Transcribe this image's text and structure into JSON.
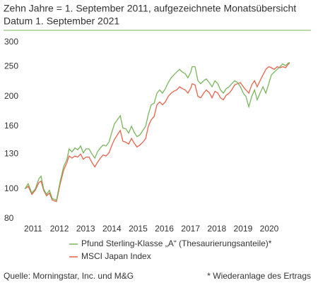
{
  "chart_data": {
    "type": "line",
    "title": "Zehn Jahre = 1. September 2011, aufgezeichnete Monatsübersicht",
    "subtitle": "Datum 1. September 2021",
    "source": "Quelle: Morningstar, Inc. und M&G",
    "footnote": "* Wiederanlage des Ertrags",
    "x": [
      2010.68,
      2010.81,
      2010.95,
      2011.08,
      2011.22,
      2011.3,
      2011.4,
      2011.51,
      2011.62,
      2011.73,
      2011.89,
      2012.02,
      2012.16,
      2012.29,
      2012.37,
      2012.48,
      2012.59,
      2012.7,
      2012.81,
      2012.91,
      2013.02,
      2013.13,
      2013.24,
      2013.35,
      2013.45,
      2013.56,
      2013.67,
      2013.78,
      2013.89,
      2013.99,
      2014.1,
      2014.21,
      2014.32,
      2014.42,
      2014.53,
      2014.64,
      2014.75,
      2014.85,
      2014.96,
      2015.07,
      2015.18,
      2015.29,
      2015.39,
      2015.5,
      2015.61,
      2015.72,
      2015.82,
      2015.93,
      2016.04,
      2016.15,
      2016.26,
      2016.36,
      2016.47,
      2016.58,
      2016.69,
      2016.8,
      2016.9,
      2017.01,
      2017.06,
      2017.17,
      2017.28,
      2017.39,
      2017.5,
      2017.6,
      2017.71,
      2017.82,
      2017.93,
      2018.04,
      2018.14,
      2018.25,
      2018.36,
      2018.47,
      2018.57,
      2018.68,
      2018.79,
      2018.9,
      2019.01,
      2019.11,
      2019.22,
      2019.33,
      2019.44,
      2019.54,
      2019.65,
      2019.76,
      2019.87,
      2019.98,
      2020.08,
      2020.19,
      2020.3,
      2020.41,
      2020.51,
      2020.62,
      2020.73,
      2020.78
    ],
    "series": [
      {
        "name": "Pfund Sterling-Klasse „A“ (Thesaurierungsanteile)*",
        "color": "#7ab55c",
        "values": [
          100,
          104,
          97,
          100,
          108,
          110,
          100,
          96,
          99,
          93,
          92,
          105,
          118,
          125,
          135,
          132,
          136,
          134,
          138,
          131,
          135,
          135,
          130,
          126,
          132,
          136,
          139,
          138,
          142,
          152,
          163,
          168,
          173,
          158,
          157,
          152,
          160,
          153,
          148,
          150,
          155,
          160,
          175,
          188,
          190,
          205,
          210,
          205,
          212,
          222,
          230,
          235,
          240,
          245,
          240,
          237,
          230,
          240,
          250,
          250,
          225,
          220,
          225,
          228,
          222,
          215,
          225,
          220,
          210,
          205,
          212,
          215,
          220,
          225,
          222,
          215,
          205,
          200,
          185,
          200,
          210,
          195,
          205,
          215,
          205,
          220,
          235,
          240,
          245,
          250,
          255,
          252,
          257,
          258
        ]
      },
      {
        "name": "MSCI Japan Index",
        "color": "#e8624a",
        "values": [
          100,
          102,
          96,
          99,
          105,
          106,
          99,
          95,
          97,
          92,
          91,
          103,
          115,
          122,
          128,
          126,
          128,
          127,
          130,
          125,
          127,
          127,
          122,
          118,
          122,
          126,
          129,
          128,
          131,
          138,
          145,
          150,
          155,
          143,
          142,
          140,
          146,
          141,
          137,
          139,
          142,
          146,
          160,
          168,
          172,
          188,
          192,
          188,
          192,
          200,
          205,
          208,
          210,
          215,
          212,
          210,
          205,
          213,
          220,
          218,
          200,
          198,
          205,
          210,
          206,
          198,
          208,
          205,
          198,
          195,
          202,
          205,
          210,
          218,
          220,
          222,
          215,
          210,
          205,
          218,
          225,
          215,
          225,
          235,
          245,
          250,
          248,
          245,
          250,
          248,
          250,
          248,
          255,
          257
        ]
      }
    ],
    "xlim": [
      2010.49,
      2021.05
    ],
    "xticks": [
      2011,
      2012,
      2013,
      2014,
      2015,
      2016,
      2017,
      2018,
      2019,
      2020
    ],
    "ylim": [
      80,
      300
    ],
    "yticks": [
      80,
      100,
      130,
      160,
      200,
      250,
      300
    ],
    "ylog": true
  }
}
